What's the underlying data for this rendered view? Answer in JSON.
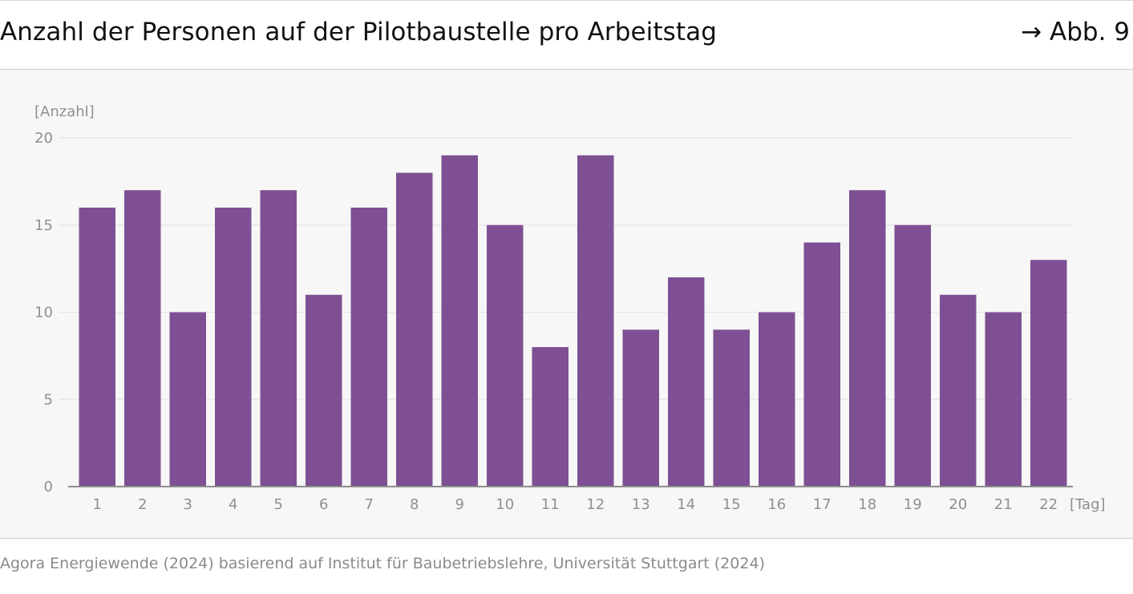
{
  "header": {
    "title": "Anzahl der Personen auf der Pilotbaustelle pro Arbeitstag",
    "figure_ref": "→ Abb. 9"
  },
  "footer": {
    "source": "Agora Energiewende (2024) basierend auf Institut für Baubetriebslehre, Universität Stuttgart (2024)"
  },
  "colors": {
    "bar": "#7e5093",
    "plot_background": "#f7f7f7"
  },
  "chart_data": {
    "type": "bar",
    "title": "Anzahl der Personen auf der Pilotbaustelle pro Arbeitstag",
    "ylabel": "[Anzahl]",
    "xlabel": "[Tag]",
    "ylim": [
      0,
      20
    ],
    "yticks": [
      0,
      5,
      10,
      15,
      20
    ],
    "grid": true,
    "categories": [
      "1",
      "2",
      "3",
      "4",
      "5",
      "6",
      "7",
      "8",
      "9",
      "10",
      "11",
      "12",
      "13",
      "14",
      "15",
      "16",
      "17",
      "18",
      "19",
      "20",
      "21",
      "22"
    ],
    "values": [
      16,
      17,
      10,
      16,
      17,
      11,
      16,
      18,
      19,
      15,
      8,
      19,
      9,
      12,
      9,
      10,
      14,
      17,
      15,
      11,
      10,
      13
    ]
  }
}
